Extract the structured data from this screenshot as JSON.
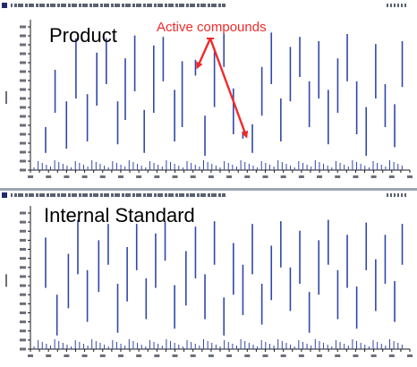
{
  "colors": {
    "accent": "#ef2b2b",
    "peak": "#3247a8",
    "axis": "#1a1a1a",
    "header_bar": "#1f2a6b",
    "divider": "#9aa6b0"
  },
  "annotation": {
    "text": "Active compounds",
    "color": "#ef2b2b"
  },
  "chart_data": [
    {
      "type": "bar",
      "title": "Product",
      "xlabel": "",
      "ylabel": "",
      "ylim": [
        0,
        100
      ],
      "xlim": [
        0,
        100
      ],
      "grid": false,
      "highlight_x": [
        43.5,
        56.0
      ],
      "peaks": [
        [
          4,
          12,
          30
        ],
        [
          6.5,
          40,
          70
        ],
        [
          9.5,
          15,
          48
        ],
        [
          12,
          50,
          92
        ],
        [
          15,
          20,
          53
        ],
        [
          17.5,
          45,
          82
        ],
        [
          20,
          60,
          92
        ],
        [
          23,
          18,
          48
        ],
        [
          25,
          35,
          78
        ],
        [
          27.5,
          55,
          94
        ],
        [
          30,
          12,
          42
        ],
        [
          32.5,
          40,
          87
        ],
        [
          35,
          62,
          93
        ],
        [
          38,
          20,
          56
        ],
        [
          40,
          30,
          76
        ],
        [
          43.5,
          66,
          77
        ],
        [
          46,
          10,
          38
        ],
        [
          48.5,
          44,
          84
        ],
        [
          51,
          72,
          95
        ],
        [
          53.5,
          25,
          57
        ],
        [
          56,
          22,
          27
        ],
        [
          58.5,
          12,
          32
        ],
        [
          61,
          38,
          72
        ],
        [
          63.5,
          60,
          96
        ],
        [
          66,
          20,
          50
        ],
        [
          68.5,
          48,
          86
        ],
        [
          71,
          65,
          93
        ],
        [
          73.5,
          30,
          62
        ],
        [
          76,
          50,
          90
        ],
        [
          78.5,
          18,
          56
        ],
        [
          81,
          40,
          78
        ],
        [
          83.5,
          62,
          95
        ],
        [
          86,
          25,
          62
        ],
        [
          88.5,
          10,
          44
        ],
        [
          91,
          50,
          88
        ],
        [
          93.5,
          30,
          60
        ],
        [
          96,
          16,
          46
        ],
        [
          98,
          58,
          90
        ]
      ]
    },
    {
      "type": "bar",
      "title": "Internal Standard",
      "xlabel": "",
      "ylabel": "",
      "ylim": [
        0,
        100
      ],
      "xlim": [
        0,
        100
      ],
      "grid": false,
      "peaks": [
        [
          4,
          45,
          82
        ],
        [
          7,
          10,
          40
        ],
        [
          10,
          30,
          70
        ],
        [
          12.5,
          55,
          95
        ],
        [
          15,
          20,
          58
        ],
        [
          18,
          42,
          80
        ],
        [
          20.5,
          62,
          92
        ],
        [
          23,
          12,
          48
        ],
        [
          25.5,
          35,
          75
        ],
        [
          28,
          58,
          92
        ],
        [
          30.5,
          22,
          52
        ],
        [
          33,
          45,
          85
        ],
        [
          35.5,
          65,
          94
        ],
        [
          38,
          15,
          47
        ],
        [
          41,
          32,
          72
        ],
        [
          43.5,
          52,
          90
        ],
        [
          46,
          22,
          55
        ],
        [
          48.5,
          62,
          94
        ],
        [
          51,
          10,
          38
        ],
        [
          53.5,
          40,
          78
        ],
        [
          56,
          25,
          62
        ],
        [
          58.5,
          55,
          92
        ],
        [
          61,
          18,
          48
        ],
        [
          63.5,
          36,
          76
        ],
        [
          66,
          60,
          94
        ],
        [
          68.5,
          28,
          60
        ],
        [
          71,
          48,
          87
        ],
        [
          73.5,
          12,
          42
        ],
        [
          76,
          40,
          80
        ],
        [
          78.5,
          62,
          95
        ],
        [
          81,
          22,
          58
        ],
        [
          83.5,
          45,
          84
        ],
        [
          86,
          15,
          46
        ],
        [
          88.5,
          58,
          93
        ],
        [
          91,
          28,
          66
        ],
        [
          93.5,
          48,
          84
        ],
        [
          96,
          20,
          50
        ],
        [
          98,
          62,
          92
        ]
      ]
    }
  ]
}
